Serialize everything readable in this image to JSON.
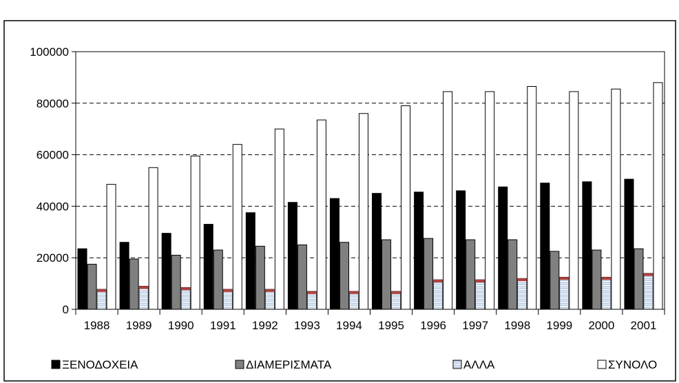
{
  "chart_data": {
    "type": "bar",
    "title": "",
    "xlabel": "",
    "ylabel": "",
    "categories": [
      "1988",
      "1989",
      "1990",
      "1991",
      "1992",
      "1993",
      "1994",
      "1995",
      "1996",
      "1997",
      "1998",
      "1999",
      "2000",
      "2001"
    ],
    "ylim": [
      0,
      100000
    ],
    "yticks": [
      "0",
      "20000",
      "40000",
      "60000",
      "80000",
      "100000"
    ],
    "grid": "horizontal dashed",
    "legend_position": "bottom",
    "series": [
      {
        "name": "ΞΕΝΟΔΟΧΕΙΑ",
        "color": "#000000",
        "pattern": "solid",
        "values": [
          23500,
          26000,
          29500,
          33000,
          37500,
          41500,
          43000,
          45000,
          45500,
          46000,
          47500,
          49000,
          49500,
          50500
        ]
      },
      {
        "name": "ΔΙΑΜΕΡΙΣΜΑΤΑ",
        "color": "#808080",
        "pattern": "solid",
        "values": [
          17500,
          19500,
          21000,
          23000,
          24500,
          25000,
          26000,
          27000,
          27500,
          27000,
          27000,
          22500,
          23000,
          23500
        ]
      },
      {
        "name": "ΑΛΛΑ",
        "color": "#9db5d6",
        "pattern": "striped",
        "values": [
          7800,
          9000,
          8500,
          7800,
          7800,
          7000,
          7000,
          7000,
          11500,
          11500,
          12000,
          12500,
          12500,
          14000
        ]
      },
      {
        "name": "ΣΥΝΟΛΟ",
        "color": "#ffffff",
        "pattern": "outline",
        "values": [
          48500,
          55000,
          59500,
          64000,
          70000,
          73500,
          76000,
          79000,
          84500,
          84500,
          86500,
          84500,
          85500,
          88000
        ]
      }
    ]
  }
}
